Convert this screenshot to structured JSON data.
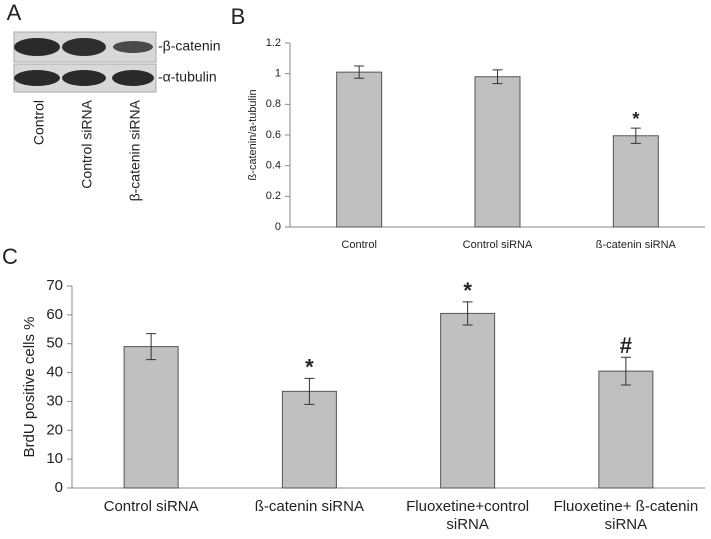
{
  "panel_a": {
    "label": "A",
    "bands": [
      "-β-catenin",
      "-α-tubulin"
    ],
    "lanes": [
      "Control",
      "Control siRNA",
      "β-catenin siRNA"
    ]
  },
  "chart_data": [
    {
      "type": "bar",
      "label": "B",
      "y_label": "ß-catenin/a-tubulin",
      "categories": [
        "Control",
        "Control siRNA",
        "ß-catenin siRNA"
      ],
      "values": [
        1.01,
        0.98,
        0.595
      ],
      "errors": [
        0.04,
        0.045,
        0.05
      ],
      "annotations": [
        null,
        null,
        "*"
      ],
      "color": "#c0c0c0",
      "ylim": [
        0,
        1.2
      ],
      "yticks": [
        0,
        0.2,
        0.4,
        0.6,
        0.8,
        1,
        1.2
      ]
    },
    {
      "type": "bar",
      "label": "C",
      "y_label": "BrdU positive cells %",
      "categories": [
        "Control siRNA",
        "ß-catenin siRNA",
        "Fluoxetine+control siRNA",
        "Fluoxetine+ ß-catenin siRNA"
      ],
      "values": [
        49,
        33.5,
        60.5,
        40.5
      ],
      "errors": [
        4.5,
        4.5,
        4,
        4.8
      ],
      "annotations": [
        null,
        "*",
        "*",
        "#"
      ],
      "color": "#c0c0c0",
      "ylim": [
        0,
        70
      ],
      "yticks": [
        0,
        10,
        20,
        30,
        40,
        50,
        60,
        70
      ]
    }
  ]
}
